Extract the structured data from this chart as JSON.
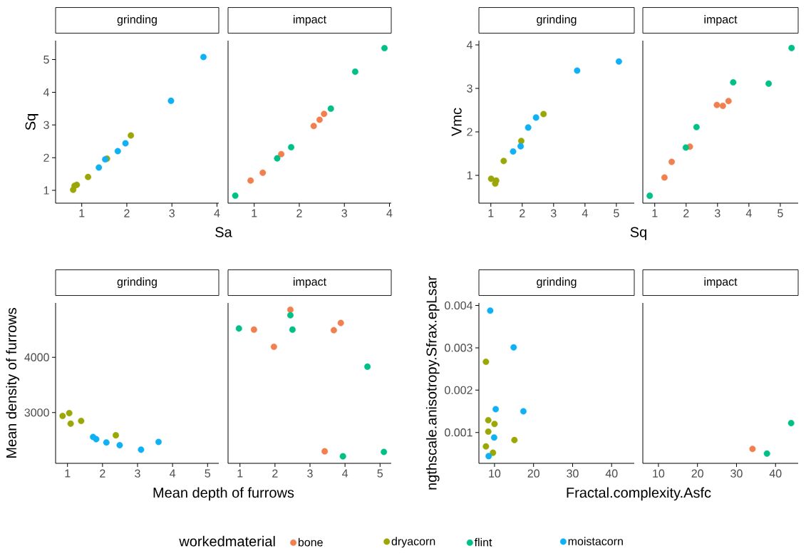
{
  "chart_data": [
    {
      "type": "scatter",
      "title": "grinding",
      "xlabel": "Sa",
      "ylabel": "Sq",
      "xlim": [
        0.42,
        4.04
      ],
      "ylim": [
        0.61,
        5.58
      ],
      "xticks": [
        1,
        2,
        3,
        4
      ],
      "yticks": [
        1,
        2,
        3,
        4,
        5
      ],
      "marker": "circle",
      "legend": "bottom",
      "legend_title": "workedmaterial",
      "series": [
        {
          "name": "dryacorn",
          "color": "#9aa706",
          "x": [
            0.81,
            0.84,
            0.89,
            1.14,
            1.56,
            2.09
          ],
          "values": [
            1.02,
            1.14,
            1.17,
            1.41,
            1.97,
            2.68
          ]
        },
        {
          "name": "moistacorn",
          "color": "#10b0f4",
          "x": [
            1.38,
            1.52,
            1.8,
            1.97,
            2.98,
            3.7
          ],
          "values": [
            1.7,
            1.95,
            2.2,
            2.44,
            3.74,
            5.08
          ]
        }
      ]
    },
    {
      "type": "scatter",
      "title": "impact",
      "xlim": [
        0.42,
        4.04
      ],
      "ylim": [
        0.61,
        5.58
      ],
      "xticks": [
        1,
        2,
        3,
        4
      ],
      "tick_labels": "x",
      "marker": "circle",
      "legend": "bottom",
      "series": [
        {
          "name": "bone",
          "color": "#f0804f",
          "x": [
            0.92,
            1.19,
            1.6,
            2.32,
            2.45,
            2.55
          ],
          "values": [
            1.3,
            1.54,
            2.11,
            2.97,
            3.16,
            3.34
          ]
        },
        {
          "name": "flint",
          "color": "#00c088",
          "x": [
            0.58,
            1.51,
            1.82,
            2.7,
            3.24,
            3.89
          ],
          "values": [
            0.84,
            1.98,
            2.32,
            3.5,
            4.63,
            5.35
          ]
        }
      ]
    },
    {
      "type": "scatter",
      "title": "grinding",
      "xlabel": "Sq",
      "ylabel": "Vmc",
      "xlim": [
        0.62,
        5.57
      ],
      "ylim": [
        0.36,
        4.1
      ],
      "xticks": [
        1,
        2,
        3,
        4,
        5
      ],
      "yticks": [
        1,
        2,
        3,
        4
      ],
      "marker": "circle",
      "series": [
        {
          "color": "#9aa706",
          "x": [
            1.01,
            1.17,
            1.14,
            1.41,
            1.97,
            2.68
          ],
          "values": [
            0.92,
            0.88,
            0.81,
            1.33,
            1.79,
            2.41
          ]
        },
        {
          "color": "#10b0f4",
          "x": [
            1.71,
            1.95,
            2.19,
            2.44,
            3.75,
            5.08
          ],
          "values": [
            1.55,
            1.67,
            2.1,
            2.33,
            3.41,
            3.62
          ]
        }
      ]
    },
    {
      "type": "scatter",
      "title": "impact",
      "xlim": [
        0.62,
        5.57
      ],
      "ylim": [
        0.36,
        4.1
      ],
      "xticks": [
        1,
        2,
        3,
        4,
        5
      ],
      "tick_labels": "x",
      "marker": "circle",
      "series": [
        {
          "color": "#f0804f",
          "x": [
            1.31,
            1.54,
            2.12,
            2.98,
            3.17,
            3.35
          ],
          "values": [
            0.95,
            1.31,
            1.66,
            2.62,
            2.6,
            2.71
          ]
        },
        {
          "color": "#00c088",
          "x": [
            0.84,
            1.99,
            2.33,
            3.5,
            4.63,
            5.36
          ],
          "values": [
            0.53,
            1.64,
            2.11,
            3.14,
            3.11,
            3.93
          ]
        }
      ]
    },
    {
      "type": "scatter",
      "title": "grinding",
      "xlabel": "Mean depth of furrows",
      "ylabel": "Mean density of furrows",
      "xlim": [
        0.66,
        5.32
      ],
      "ylim": [
        2083,
        4982
      ],
      "xticks": [
        1,
        2,
        3,
        4,
        5
      ],
      "yticks": [
        3000,
        4000
      ],
      "marker": "circle",
      "series": [
        {
          "color": "#9aa706",
          "x": [
            0.86,
            1.05,
            1.09,
            1.39,
            2.38
          ],
          "values": [
            2940,
            2990,
            2800,
            2850,
            2590
          ]
        },
        {
          "color": "#10b0f4",
          "x": [
            1.73,
            1.82,
            2.11,
            2.49,
            3.1,
            3.6
          ],
          "values": [
            2560,
            2520,
            2460,
            2410,
            2330,
            2470
          ]
        }
      ]
    },
    {
      "type": "scatter",
      "title": "impact",
      "xlim": [
        0.66,
        5.32
      ],
      "ylim": [
        2083,
        4982
      ],
      "xticks": [
        1,
        2,
        3,
        4,
        5
      ],
      "tick_labels": "x",
      "marker": "circle",
      "series": [
        {
          "color": "#f0804f",
          "x": [
            1.4,
            1.97,
            2.44,
            3.68,
            3.88,
            3.42
          ],
          "values": [
            4500,
            4190,
            4860,
            4490,
            4620,
            2300
          ]
        },
        {
          "color": "#00c088",
          "x": [
            0.97,
            2.44,
            2.5,
            4.64,
            3.94,
            5.11
          ],
          "values": [
            4520,
            4760,
            4500,
            3830,
            2210,
            2290
          ]
        }
      ]
    },
    {
      "type": "scatter",
      "title": "grinding",
      "xlabel": "Fractal.complexity.Asfc",
      "ylabel": "ngthscale.anisotropy.Sfrax.epLsar",
      "xlim": [
        6.0,
        45.8
      ],
      "ylim": [
        0.00027,
        0.00406
      ],
      "xticks": [
        10,
        20,
        30,
        40
      ],
      "yticks": [
        {
          "value": 0.001,
          "label": "0.001"
        },
        {
          "value": 0.002,
          "label": "0.002"
        },
        {
          "value": 0.003,
          "label": "0.003"
        },
        {
          "value": 0.004,
          "label": "0.004"
        }
      ],
      "marker": "circle",
      "series": [
        {
          "color": "#9aa706",
          "x": [
            7.8,
            8.4,
            10.0,
            8.4,
            7.8,
            9.6,
            15.1
          ],
          "values": [
            0.00267,
            0.00129,
            0.0012,
            0.00102,
            0.00067,
            0.00052,
            0.00082
          ]
        },
        {
          "color": "#10b0f4",
          "x": [
            8.9,
            14.9,
            10.3,
            17.4,
            9.9,
            8.5
          ],
          "values": [
            0.00388,
            0.00301,
            0.00155,
            0.0015,
            0.00088,
            0.00044
          ]
        }
      ]
    },
    {
      "type": "scatter",
      "title": "impact",
      "xlim": [
        6.0,
        45.8
      ],
      "ylim": [
        0.00027,
        0.00406
      ],
      "xticks": [
        10,
        20,
        30,
        40
      ],
      "tick_labels": "x",
      "marker": "circle",
      "series": [
        {
          "color": "#f0804f",
          "x": [
            34.1
          ],
          "values": [
            0.00061
          ]
        },
        {
          "color": "#00c088",
          "x": [
            37.8,
            44.0
          ],
          "values": [
            0.0005,
            0.00122
          ]
        }
      ]
    }
  ]
}
